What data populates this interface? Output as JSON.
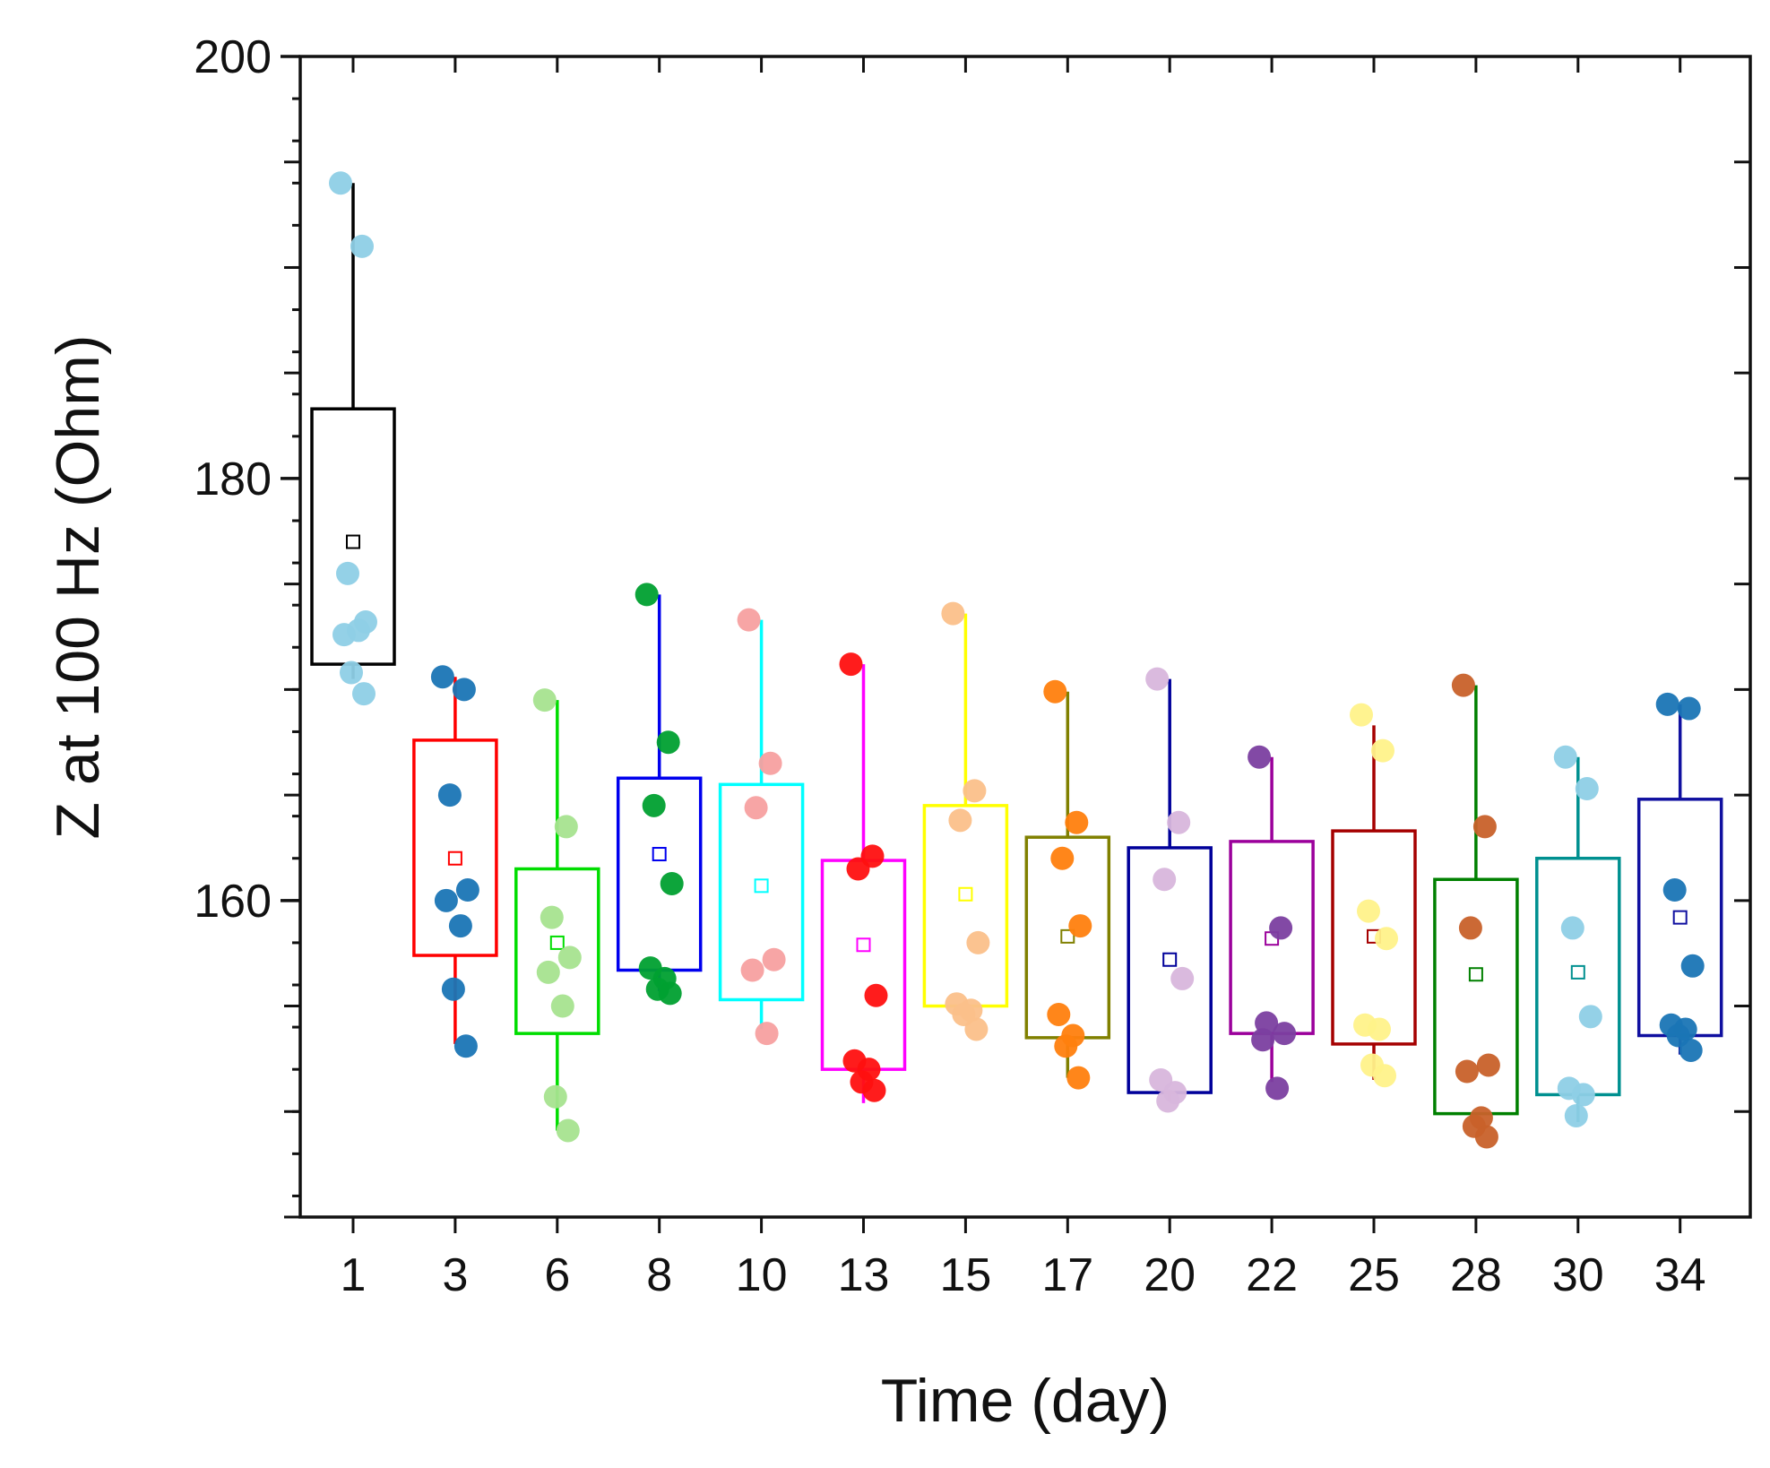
{
  "chart_data": {
    "type": "box",
    "title": "",
    "xlabel": "Time (day)",
    "ylabel": "Z at 100 Hz (Ohm)",
    "ylim": [
      145,
      200
    ],
    "y_major_ticks": [
      160,
      180,
      200
    ],
    "y_minor_step": 2,
    "categories": [
      "1",
      "3",
      "6",
      "8",
      "10",
      "13",
      "15",
      "17",
      "20",
      "22",
      "25",
      "28",
      "30",
      "34"
    ],
    "series": [
      {
        "name": "1",
        "box_color": "#000000",
        "point_color": "#8ecfe6",
        "box": [
          171.2,
          183.3
        ],
        "whisker": [
          170.5,
          194.0
        ],
        "mean": 177.0,
        "points": [
          194.0,
          191.0,
          175.5,
          173.2,
          172.6,
          172.8,
          170.8,
          169.8
        ]
      },
      {
        "name": "3",
        "box_color": "#ff0000",
        "point_color": "#1a75b5",
        "box": [
          157.4,
          167.6
        ],
        "whisker": [
          153.2,
          170.6
        ],
        "mean": 162.0,
        "points": [
          170.6,
          170.0,
          165.0,
          160.5,
          160.0,
          158.8,
          155.8,
          153.1
        ]
      },
      {
        "name": "6",
        "box_color": "#00dd00",
        "point_color": "#a6e38f",
        "box": [
          153.7,
          161.5
        ],
        "whisker": [
          149.1,
          169.5
        ],
        "mean": 158.0,
        "points": [
          169.5,
          163.5,
          159.2,
          157.3,
          156.6,
          155.0,
          150.7,
          149.1
        ]
      },
      {
        "name": "8",
        "box_color": "#0000ee",
        "point_color": "#00a030",
        "box": [
          156.7,
          165.8
        ],
        "whisker": [
          155.7,
          174.5
        ],
        "mean": 162.2,
        "points": [
          174.5,
          167.5,
          164.5,
          160.8,
          156.8,
          156.3,
          155.8,
          155.6
        ]
      },
      {
        "name": "10",
        "box_color": "#00ffff",
        "point_color": "#f7a0a0",
        "box": [
          155.3,
          165.5
        ],
        "whisker": [
          153.9,
          173.3
        ],
        "mean": 160.7,
        "points": [
          173.3,
          166.5,
          164.4,
          157.2,
          156.7,
          153.7
        ]
      },
      {
        "name": "13",
        "box_color": "#ff00ff",
        "point_color": "#ff1010",
        "box": [
          152.0,
          161.9
        ],
        "whisker": [
          150.4,
          171.2
        ],
        "mean": 157.9,
        "points": [
          171.2,
          162.1,
          161.5,
          155.5,
          152.4,
          152.0,
          151.4,
          151.0
        ]
      },
      {
        "name": "15",
        "box_color": "#ffff00",
        "point_color": "#fbc08a",
        "box": [
          155.0,
          164.5
        ],
        "whisker": [
          154.6,
          173.6
        ],
        "mean": 160.3,
        "points": [
          173.6,
          165.2,
          163.8,
          158.0,
          155.1,
          154.8,
          154.6,
          153.9
        ]
      },
      {
        "name": "17",
        "box_color": "#808000",
        "point_color": "#ff7f0e",
        "box": [
          153.5,
          163.0
        ],
        "whisker": [
          151.6,
          169.9
        ],
        "mean": 158.3,
        "points": [
          169.9,
          163.7,
          162.0,
          158.8,
          154.6,
          153.6,
          153.1,
          151.6
        ]
      },
      {
        "name": "20",
        "box_color": "#00009a",
        "point_color": "#d8b6dc",
        "box": [
          150.9,
          162.5
        ],
        "whisker": [
          150.5,
          170.5
        ],
        "mean": 157.2,
        "points": [
          170.5,
          163.7,
          161.0,
          156.3,
          151.5,
          150.9,
          150.5
        ]
      },
      {
        "name": "22",
        "box_color": "#9b009b",
        "point_color": "#7b3fa0",
        "box": [
          153.7,
          162.8
        ],
        "whisker": [
          151.4,
          166.8
        ],
        "mean": 158.2,
        "points": [
          166.8,
          158.7,
          154.2,
          153.7,
          153.4,
          151.1
        ]
      },
      {
        "name": "25",
        "box_color": "#a50000",
        "point_color": "#fff28a",
        "box": [
          153.2,
          163.3
        ],
        "whisker": [
          151.5,
          168.3
        ],
        "mean": 158.3,
        "points": [
          168.8,
          167.1,
          159.5,
          158.2,
          154.1,
          153.9,
          152.2,
          151.7
        ]
      },
      {
        "name": "28",
        "box_color": "#008000",
        "point_color": "#c8612a",
        "box": [
          149.9,
          161.0
        ],
        "whisker": [
          149.9,
          170.2
        ],
        "mean": 156.5,
        "points": [
          170.2,
          163.5,
          158.7,
          152.2,
          151.9,
          149.7,
          149.3,
          148.8
        ]
      },
      {
        "name": "30",
        "box_color": "#009090",
        "point_color": "#8ecfe6",
        "box": [
          150.8,
          162.0
        ],
        "whisker": [
          149.5,
          166.8
        ],
        "mean": 156.6,
        "points": [
          166.8,
          165.3,
          158.7,
          154.5,
          151.1,
          150.8,
          149.8
        ]
      },
      {
        "name": "34",
        "box_color": "#1010a0",
        "point_color": "#1a75b5",
        "box": [
          153.6,
          164.8
        ],
        "whisker": [
          152.7,
          169.3
        ],
        "mean": 159.2,
        "points": [
          169.3,
          169.1,
          160.5,
          156.9,
          154.1,
          153.9,
          153.6,
          152.9
        ]
      }
    ]
  }
}
